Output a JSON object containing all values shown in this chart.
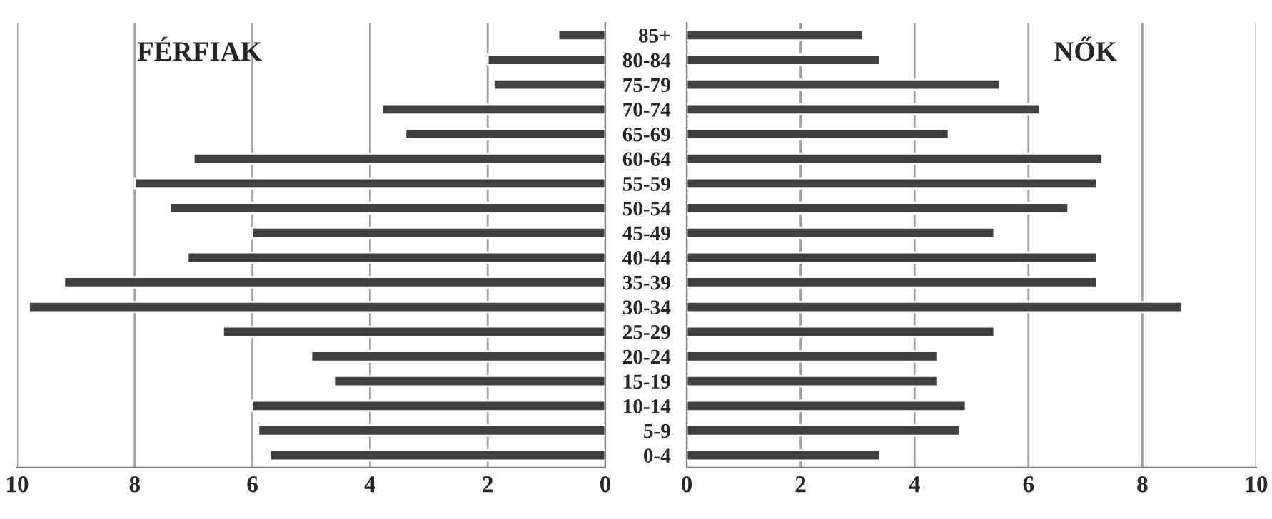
{
  "chart_data": [
    {
      "type": "bar",
      "orientation": "horizontal",
      "title": "FÉRFIAK",
      "categories": [
        null,
        null,
        null,
        null,
        null,
        null,
        null,
        null,
        null,
        null,
        null,
        null,
        null,
        null,
        null,
        null,
        null,
        null
      ],
      "values": [
        0.8,
        2.0,
        1.9,
        3.8,
        3.4,
        7.0,
        8.0,
        7.4,
        6.0,
        7.1,
        9.2,
        9.8,
        6.5,
        5.0,
        4.6,
        6.0,
        5.9,
        5.7
      ],
      "color": "#404040",
      "xlim": [
        10,
        0
      ],
      "xticks": [
        10,
        8,
        6,
        4,
        2,
        0
      ],
      "grid": "x"
    },
    {
      "type": "bar",
      "orientation": "horizontal",
      "title": "NŐK",
      "categories": [
        "85+",
        "80-84",
        "75-79",
        "70-74",
        "65-69",
        "60-64",
        "55-59",
        "50-54",
        "45-49",
        "40-44",
        "35-39",
        "30-34",
        "25-29",
        "20-24",
        "15-19",
        "10-14",
        "5-9",
        "0-4"
      ],
      "values": [
        3.1,
        3.4,
        5.5,
        6.2,
        4.6,
        7.3,
        7.2,
        6.7,
        5.4,
        7.2,
        7.2,
        8.7,
        5.4,
        4.4,
        4.4,
        4.9,
        4.8,
        3.4
      ],
      "color": "#404040",
      "xlim": [
        0,
        10
      ],
      "xticks": [
        0,
        2,
        4,
        6,
        8,
        10
      ],
      "grid": "x"
    }
  ]
}
